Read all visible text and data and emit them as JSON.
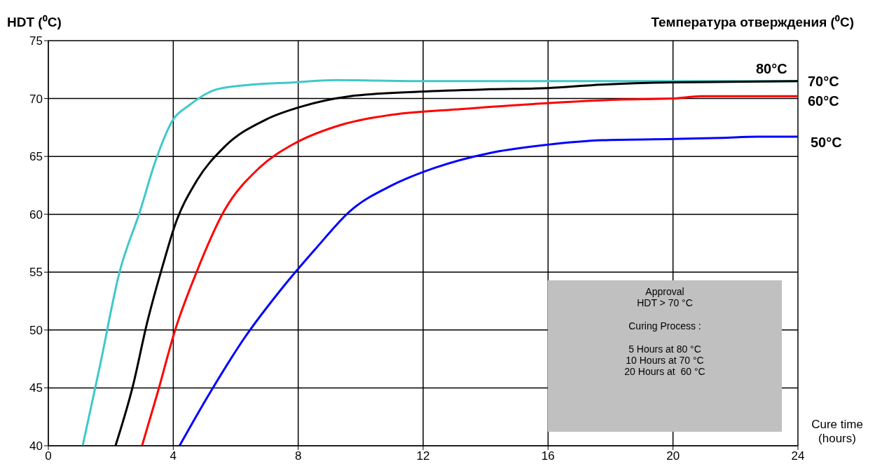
{
  "chart_data": {
    "type": "line",
    "ylabel": "HDT (⁰C)",
    "xlabel": "Cure time (hours)",
    "legend_title": "Температура отверждения (⁰C)",
    "xlim": [
      0,
      24
    ],
    "xticks": [
      0,
      4,
      8,
      12,
      16,
      20,
      24
    ],
    "ylim": [
      40,
      75
    ],
    "yticks": [
      40,
      45,
      50,
      55,
      60,
      65,
      70,
      75
    ],
    "grid": true,
    "legend": false,
    "marker": "none",
    "line_style": "solid",
    "series": [
      {
        "name": "80°C",
        "color": "#40c8c8",
        "x": [
          1.1,
          1.66,
          2.27,
          2.94,
          3.43,
          4.0,
          4.5,
          5.4,
          6.5,
          7.9,
          9.2,
          12,
          16,
          20,
          24
        ],
        "values": [
          40,
          47,
          54.9,
          60.3,
          64.6,
          68.2,
          69.4,
          70.8,
          71.2,
          71.4,
          71.6,
          71.5,
          71.5,
          71.5,
          71.5
        ]
      },
      {
        "name": "70°C",
        "color": "#000000",
        "x": [
          2.15,
          2.71,
          3.16,
          3.72,
          4.06,
          4.73,
          5.63,
          6.98,
          8.1,
          9.67,
          11.9,
          14.15,
          15.95,
          17.7,
          20,
          24
        ],
        "values": [
          40,
          45.2,
          50.6,
          56.1,
          59.1,
          62.8,
          65.8,
          68.2,
          69.3,
          70.2,
          70.6,
          70.8,
          70.9,
          71.2,
          71.4,
          71.5
        ]
      },
      {
        "name": "60°C",
        "color": "#ff0000",
        "x": [
          3.0,
          3.5,
          4.06,
          4.73,
          5.63,
          6.75,
          7.87,
          9.22,
          11.0,
          13.26,
          15.95,
          18.2,
          20,
          20.9,
          24
        ],
        "values": [
          40,
          44.6,
          50,
          54.9,
          60.3,
          64,
          66.1,
          67.6,
          68.6,
          69.1,
          69.6,
          69.9,
          70,
          70.2,
          70.2
        ]
      },
      {
        "name": "50°C",
        "color": "#0000ff",
        "x": [
          4.2,
          5.18,
          6.3,
          7.42,
          8.55,
          9.67,
          11.0,
          12.36,
          14.15,
          15.95,
          17.74,
          20,
          21.56,
          22.7,
          24
        ],
        "values": [
          40,
          44.6,
          49.4,
          53.4,
          57,
          60.3,
          62.5,
          64,
          65.3,
          66,
          66.4,
          66.5,
          66.6,
          66.7,
          66.7
        ]
      }
    ],
    "annotations": [
      "Approval",
      "HDT > 70 °C",
      "Curing Process :",
      "5 Hours at 80 °C",
      "10 Hours at 70 °C",
      "20 Hours at  60 °C"
    ]
  }
}
